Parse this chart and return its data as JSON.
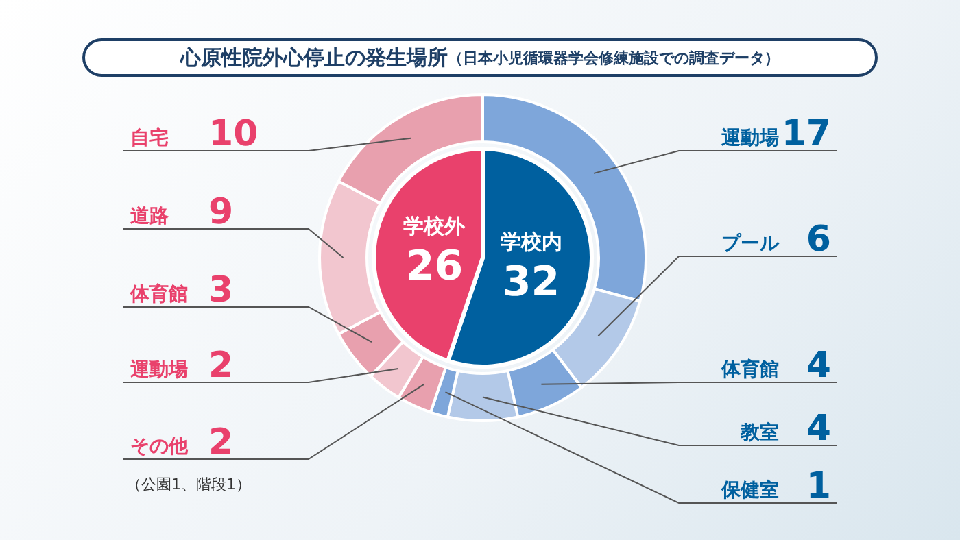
{
  "chart_data": [
    {
      "type": "pie",
      "title": "心原性院外心停止の発生場所（日本小児循環器学会修練施設での調査データ）",
      "categories": [
        "学校内",
        "学校外"
      ],
      "values": [
        32,
        26
      ],
      "colors": [
        "#00609f",
        "#e9416c"
      ],
      "data_labels": true
    },
    {
      "type": "donut",
      "categories": [
        "運動場",
        "プール",
        "体育館",
        "教室",
        "保健室",
        "その他",
        "運動場",
        "体育館",
        "道路",
        "自宅"
      ],
      "values": [
        17,
        6,
        4,
        4,
        1,
        2,
        2,
        3,
        9,
        10
      ],
      "colors": [
        "#7ea6da",
        "#b3c9e8",
        "#7ea6da",
        "#b3c9e8",
        "#7ea6da",
        "#e8a0ae",
        "#f2c6cf",
        "#e8a0ae",
        "#f2c6cf",
        "#e8a0ae"
      ],
      "data_labels": true,
      "annotations": [
        "（公園1、階段1）"
      ]
    }
  ]
}
